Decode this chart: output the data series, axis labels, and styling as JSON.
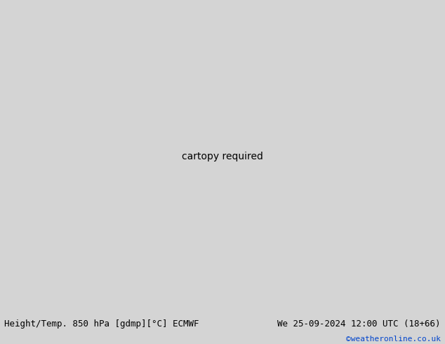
{
  "title_left": "Height/Temp. 850 hPa [gdmp][°C] ECMWF",
  "title_right": "We 25-09-2024 12:00 UTC (18+66)",
  "copyright": "©weatheronline.co.uk",
  "background_ocean": "#d4d4d4",
  "land_green_color": "#c8f0a0",
  "land_gray_color": "#b8b8b8",
  "coast_color": "#808080",
  "figsize": [
    6.34,
    4.9
  ],
  "dpi": 100,
  "bottom_bar_color": "#e8e8e8",
  "font_size_bottom": 9,
  "font_size_copyright": 8,
  "map_extent": [
    88,
    160,
    -12,
    50
  ],
  "colors": {
    "black_contour": "#000000",
    "red_contour": "#ff0000",
    "orange_contour": "#ff9900",
    "lime_contour": "#88cc00",
    "teal_contour": "#00ccaa",
    "magenta_contour": "#ff00aa"
  }
}
